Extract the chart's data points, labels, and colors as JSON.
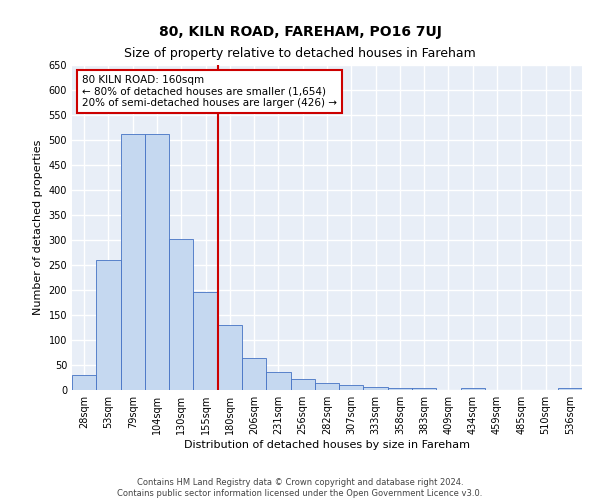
{
  "title": "80, KILN ROAD, FAREHAM, PO16 7UJ",
  "subtitle": "Size of property relative to detached houses in Fareham",
  "xlabel": "Distribution of detached houses by size in Fareham",
  "ylabel": "Number of detached properties",
  "footer_line1": "Contains HM Land Registry data © Crown copyright and database right 2024.",
  "footer_line2": "Contains public sector information licensed under the Open Government Licence v3.0.",
  "categories": [
    "28sqm",
    "53sqm",
    "79sqm",
    "104sqm",
    "130sqm",
    "155sqm",
    "180sqm",
    "206sqm",
    "231sqm",
    "256sqm",
    "282sqm",
    "307sqm",
    "333sqm",
    "358sqm",
    "383sqm",
    "409sqm",
    "434sqm",
    "459sqm",
    "485sqm",
    "510sqm",
    "536sqm"
  ],
  "values": [
    30,
    260,
    512,
    512,
    302,
    197,
    130,
    64,
    37,
    22,
    15,
    10,
    6,
    5,
    5,
    0,
    5,
    0,
    0,
    0,
    5
  ],
  "bar_color": "#c5d8f0",
  "bar_edge_color": "#4472c4",
  "vline_x": 5.5,
  "vline_color": "#cc0000",
  "annotation_text": "80 KILN ROAD: 160sqm\n← 80% of detached houses are smaller (1,654)\n20% of semi-detached houses are larger (426) →",
  "annotation_box_color": "#ffffff",
  "annotation_box_edge_color": "#cc0000",
  "ylim": [
    0,
    650
  ],
  "yticks": [
    0,
    50,
    100,
    150,
    200,
    250,
    300,
    350,
    400,
    450,
    500,
    550,
    600,
    650
  ],
  "bg_color": "#e8eef7",
  "grid_color": "#ffffff",
  "title_fontsize": 10,
  "subtitle_fontsize": 9,
  "axis_label_fontsize": 8,
  "tick_fontsize": 7,
  "annotation_fontsize": 7.5
}
